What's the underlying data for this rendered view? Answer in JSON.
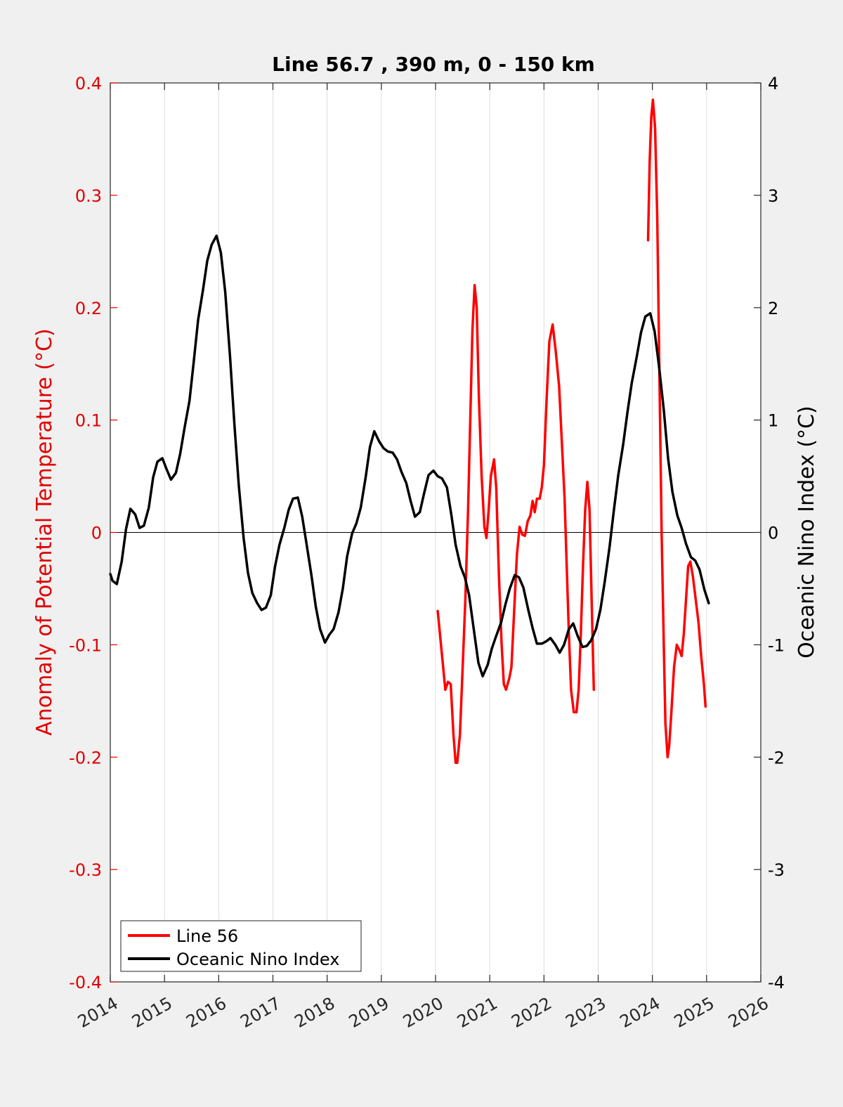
{
  "chart_data": {
    "type": "line",
    "title": "Line 56.7 , 390 m, 0 - 150 km",
    "xlabel": "",
    "ylabel_left": "Anomaly of Potential Temperature (°C)",
    "ylabel_right": "Oceanic Nino Index (°C)",
    "xlim": [
      2014,
      2026
    ],
    "ylim_left": [
      -0.4,
      0.4
    ],
    "ylim_right": [
      -4,
      4
    ],
    "x_ticks": [
      "2014",
      "2015",
      "2016",
      "2017",
      "2018",
      "2019",
      "2020",
      "2021",
      "2022",
      "2023",
      "2024",
      "2025",
      "2026"
    ],
    "y_ticks_left": [
      "-0.4",
      "-0.3",
      "-0.2",
      "-0.1",
      "0",
      "0.1",
      "0.2",
      "0.3",
      "0.4"
    ],
    "y_ticks_right": [
      "-4",
      "-3",
      "-2",
      "-1",
      "0",
      "1",
      "2",
      "3",
      "4"
    ],
    "grid": "vertical",
    "legend_position": "bottom-left",
    "colors": {
      "line56": "#ff0000",
      "oni": "#000000",
      "left_axis": "#e00000",
      "right_axis": "#000000"
    },
    "series": [
      {
        "name": "Line 56",
        "axis": "left",
        "color": "#ff0000",
        "segments": [
          [
            [
              2020.04,
              -0.07
            ],
            [
              2020.12,
              -0.11
            ],
            [
              2020.18,
              -0.14
            ],
            [
              2020.23,
              -0.133
            ],
            [
              2020.28,
              -0.135
            ],
            [
              2020.33,
              -0.18
            ],
            [
              2020.37,
              -0.205
            ],
            [
              2020.4,
              -0.205
            ],
            [
              2020.45,
              -0.18
            ],
            [
              2020.5,
              -0.12
            ],
            [
              2020.55,
              -0.06
            ],
            [
              2020.6,
              0.02
            ],
            [
              2020.64,
              0.1
            ],
            [
              2020.68,
              0.18
            ],
            [
              2020.72,
              0.22
            ],
            [
              2020.76,
              0.2
            ],
            [
              2020.8,
              0.12
            ],
            [
              2020.85,
              0.05
            ],
            [
              2020.9,
              0.005
            ],
            [
              2020.94,
              -0.005
            ],
            [
              2020.98,
              0.02
            ],
            [
              2021.02,
              0.05
            ],
            [
              2021.08,
              0.065
            ],
            [
              2021.12,
              0.04
            ],
            [
              2021.17,
              -0.04
            ],
            [
              2021.22,
              -0.1
            ],
            [
              2021.26,
              -0.135
            ],
            [
              2021.3,
              -0.14
            ],
            [
              2021.36,
              -0.13
            ],
            [
              2021.4,
              -0.12
            ],
            [
              2021.45,
              -0.07
            ],
            [
              2021.5,
              -0.02
            ],
            [
              2021.55,
              0.005
            ],
            [
              2021.6,
              -0.002
            ],
            [
              2021.65,
              -0.003
            ],
            [
              2021.7,
              0.01
            ],
            [
              2021.75,
              0.015
            ],
            [
              2021.79,
              0.028
            ],
            [
              2021.83,
              0.018
            ],
            [
              2021.87,
              0.03
            ],
            [
              2021.92,
              0.03
            ],
            [
              2021.96,
              0.04
            ],
            [
              2022.0,
              0.06
            ],
            [
              2022.05,
              0.12
            ],
            [
              2022.1,
              0.17
            ],
            [
              2022.16,
              0.185
            ],
            [
              2022.22,
              0.16
            ],
            [
              2022.28,
              0.13
            ],
            [
              2022.33,
              0.08
            ],
            [
              2022.38,
              0.03
            ],
            [
              2022.42,
              -0.03
            ],
            [
              2022.46,
              -0.09
            ],
            [
              2022.5,
              -0.14
            ],
            [
              2022.55,
              -0.16
            ],
            [
              2022.6,
              -0.16
            ],
            [
              2022.64,
              -0.14
            ],
            [
              2022.68,
              -0.09
            ],
            [
              2022.72,
              -0.03
            ],
            [
              2022.76,
              0.02
            ],
            [
              2022.8,
              0.045
            ],
            [
              2022.84,
              0.02
            ],
            [
              2022.88,
              -0.06
            ],
            [
              2022.92,
              -0.14
            ]
          ],
          [
            [
              2023.92,
              0.26
            ],
            [
              2023.95,
              0.33
            ],
            [
              2023.98,
              0.37
            ],
            [
              2024.01,
              0.385
            ],
            [
              2024.05,
              0.36
            ],
            [
              2024.09,
              0.28
            ],
            [
              2024.13,
              0.14
            ],
            [
              2024.17,
              0.0
            ],
            [
              2024.21,
              -0.1
            ],
            [
              2024.24,
              -0.17
            ],
            [
              2024.28,
              -0.2
            ],
            [
              2024.31,
              -0.19
            ],
            [
              2024.35,
              -0.16
            ],
            [
              2024.4,
              -0.12
            ],
            [
              2024.45,
              -0.1
            ],
            [
              2024.5,
              -0.105
            ],
            [
              2024.54,
              -0.11
            ],
            [
              2024.58,
              -0.09
            ],
            [
              2024.62,
              -0.06
            ],
            [
              2024.66,
              -0.03
            ],
            [
              2024.7,
              -0.026
            ],
            [
              2024.75,
              -0.04
            ],
            [
              2024.8,
              -0.06
            ],
            [
              2024.85,
              -0.08
            ],
            [
              2024.9,
              -0.11
            ],
            [
              2024.95,
              -0.135
            ],
            [
              2024.98,
              -0.155
            ]
          ]
        ]
      },
      {
        "name": "Oceanic Nino Index",
        "axis": "right",
        "color": "#000000",
        "segments": [
          [
            [
              2014.0,
              -0.37
            ],
            [
              2014.04,
              -0.43
            ],
            [
              2014.12,
              -0.46
            ],
            [
              2014.21,
              -0.26
            ],
            [
              2014.29,
              0.03
            ],
            [
              2014.37,
              0.21
            ],
            [
              2014.46,
              0.16
            ],
            [
              2014.54,
              0.04
            ],
            [
              2014.62,
              0.06
            ],
            [
              2014.71,
              0.22
            ],
            [
              2014.79,
              0.49
            ],
            [
              2014.87,
              0.63
            ],
            [
              2014.96,
              0.66
            ],
            [
              2015.04,
              0.56
            ],
            [
              2015.12,
              0.47
            ],
            [
              2015.21,
              0.53
            ],
            [
              2015.29,
              0.7
            ],
            [
              2015.37,
              0.93
            ],
            [
              2015.46,
              1.17
            ],
            [
              2015.54,
              1.52
            ],
            [
              2015.62,
              1.89
            ],
            [
              2015.71,
              2.16
            ],
            [
              2015.79,
              2.42
            ],
            [
              2015.87,
              2.56
            ],
            [
              2015.96,
              2.64
            ],
            [
              2016.04,
              2.49
            ],
            [
              2016.12,
              2.14
            ],
            [
              2016.21,
              1.56
            ],
            [
              2016.29,
              0.96
            ],
            [
              2016.37,
              0.42
            ],
            [
              2016.46,
              -0.05
            ],
            [
              2016.54,
              -0.36
            ],
            [
              2016.62,
              -0.54
            ],
            [
              2016.71,
              -0.63
            ],
            [
              2016.79,
              -0.69
            ],
            [
              2016.87,
              -0.67
            ],
            [
              2016.96,
              -0.56
            ],
            [
              2017.04,
              -0.3
            ],
            [
              2017.12,
              -0.11
            ],
            [
              2017.21,
              0.04
            ],
            [
              2017.29,
              0.2
            ],
            [
              2017.37,
              0.3
            ],
            [
              2017.46,
              0.31
            ],
            [
              2017.54,
              0.14
            ],
            [
              2017.62,
              -0.1
            ],
            [
              2017.71,
              -0.38
            ],
            [
              2017.79,
              -0.66
            ],
            [
              2017.87,
              -0.86
            ],
            [
              2017.96,
              -0.98
            ],
            [
              2018.04,
              -0.91
            ],
            [
              2018.12,
              -0.86
            ],
            [
              2018.21,
              -0.71
            ],
            [
              2018.29,
              -0.5
            ],
            [
              2018.37,
              -0.21
            ],
            [
              2018.46,
              -0.01
            ],
            [
              2018.54,
              0.08
            ],
            [
              2018.62,
              0.22
            ],
            [
              2018.71,
              0.49
            ],
            [
              2018.79,
              0.76
            ],
            [
              2018.87,
              0.9
            ],
            [
              2018.96,
              0.81
            ],
            [
              2019.04,
              0.75
            ],
            [
              2019.12,
              0.72
            ],
            [
              2019.21,
              0.71
            ],
            [
              2019.29,
              0.65
            ],
            [
              2019.37,
              0.54
            ],
            [
              2019.46,
              0.44
            ],
            [
              2019.54,
              0.28
            ],
            [
              2019.62,
              0.14
            ],
            [
              2019.71,
              0.18
            ],
            [
              2019.79,
              0.35
            ],
            [
              2019.87,
              0.51
            ],
            [
              2019.96,
              0.55
            ],
            [
              2020.04,
              0.5
            ],
            [
              2020.12,
              0.48
            ],
            [
              2020.21,
              0.4
            ],
            [
              2020.29,
              0.16
            ],
            [
              2020.37,
              -0.11
            ],
            [
              2020.46,
              -0.3
            ],
            [
              2020.54,
              -0.4
            ],
            [
              2020.62,
              -0.56
            ],
            [
              2020.71,
              -0.88
            ],
            [
              2020.79,
              -1.16
            ],
            [
              2020.87,
              -1.28
            ],
            [
              2020.96,
              -1.18
            ],
            [
              2021.04,
              -1.03
            ],
            [
              2021.12,
              -0.92
            ],
            [
              2021.21,
              -0.8
            ],
            [
              2021.29,
              -0.64
            ],
            [
              2021.37,
              -0.5
            ],
            [
              2021.46,
              -0.38
            ],
            [
              2021.54,
              -0.4
            ],
            [
              2021.62,
              -0.49
            ],
            [
              2021.71,
              -0.69
            ],
            [
              2021.79,
              -0.85
            ],
            [
              2021.87,
              -0.99
            ],
            [
              2021.96,
              -0.99
            ],
            [
              2022.04,
              -0.97
            ],
            [
              2022.12,
              -0.94
            ],
            [
              2022.21,
              -1.0
            ],
            [
              2022.29,
              -1.07
            ],
            [
              2022.37,
              -1.0
            ],
            [
              2022.46,
              -0.86
            ],
            [
              2022.54,
              -0.81
            ],
            [
              2022.62,
              -0.92
            ],
            [
              2022.71,
              -1.02
            ],
            [
              2022.79,
              -1.01
            ],
            [
              2022.87,
              -0.96
            ],
            [
              2022.96,
              -0.86
            ],
            [
              2023.04,
              -0.69
            ],
            [
              2023.12,
              -0.44
            ],
            [
              2023.21,
              -0.13
            ],
            [
              2023.29,
              0.2
            ],
            [
              2023.37,
              0.51
            ],
            [
              2023.46,
              0.78
            ],
            [
              2023.54,
              1.07
            ],
            [
              2023.62,
              1.33
            ],
            [
              2023.71,
              1.56
            ],
            [
              2023.79,
              1.78
            ],
            [
              2023.87,
              1.92
            ],
            [
              2023.96,
              1.95
            ],
            [
              2024.04,
              1.79
            ],
            [
              2024.12,
              1.49
            ],
            [
              2024.21,
              1.09
            ],
            [
              2024.29,
              0.66
            ],
            [
              2024.37,
              0.36
            ],
            [
              2024.46,
              0.15
            ],
            [
              2024.54,
              0.04
            ],
            [
              2024.62,
              -0.1
            ],
            [
              2024.71,
              -0.22
            ],
            [
              2024.79,
              -0.25
            ],
            [
              2024.87,
              -0.33
            ],
            [
              2024.96,
              -0.51
            ],
            [
              2025.04,
              -0.63
            ]
          ]
        ]
      }
    ]
  }
}
